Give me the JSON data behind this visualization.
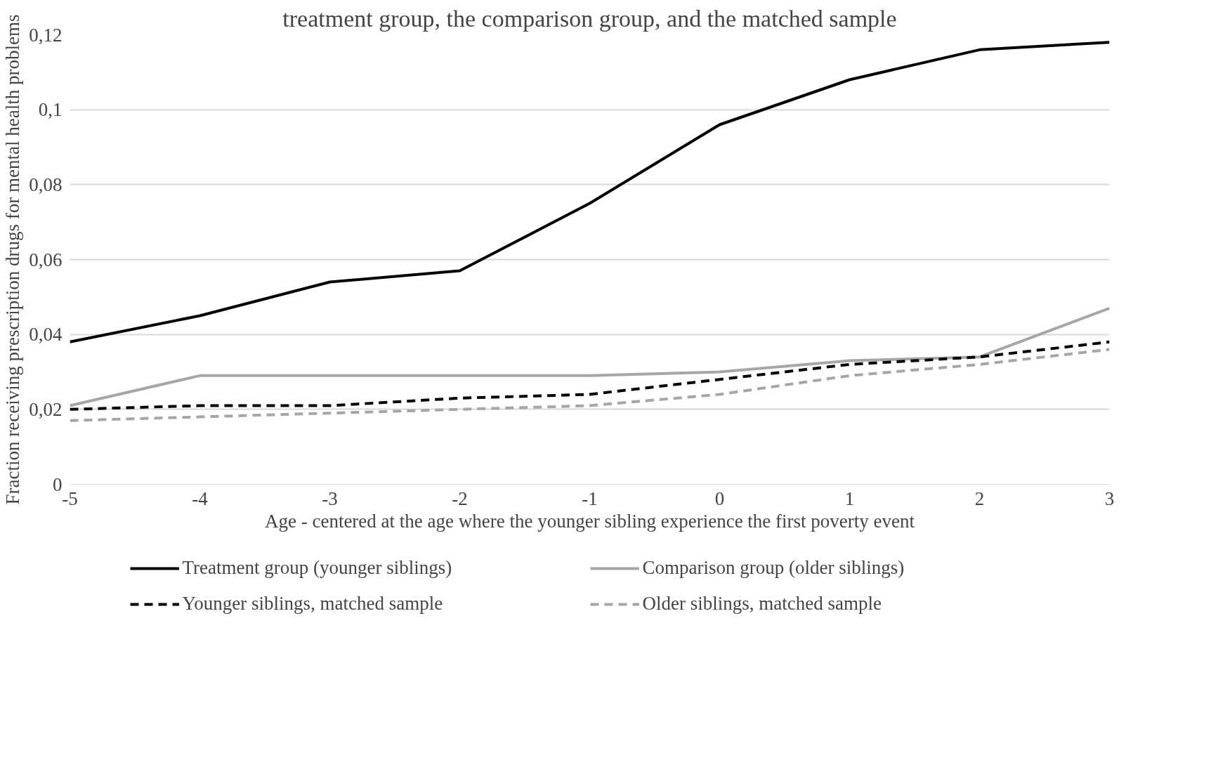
{
  "chart_data": {
    "type": "line",
    "title": "treatment group, the comparison group, and the matched sample",
    "xlabel": "Age - centered at the age where the younger sibling experience the first poverty event",
    "ylabel": "Fraction receiving prescription drugs for mental health problems",
    "x": [
      -5,
      -4,
      -3,
      -2,
      -1,
      0,
      1,
      2,
      3
    ],
    "xlim": [
      -5,
      3
    ],
    "xticks": [
      -5,
      -4,
      -3,
      -2,
      -1,
      0,
      1,
      2,
      3
    ],
    "ylim": [
      0,
      0.12
    ],
    "yticks": [
      {
        "value": 0,
        "label": "0"
      },
      {
        "value": 0.02,
        "label": "0,02"
      },
      {
        "value": 0.04,
        "label": "0,04"
      },
      {
        "value": 0.06,
        "label": "0,06"
      },
      {
        "value": 0.08,
        "label": "0,08"
      },
      {
        "value": 0.1,
        "label": "0,1"
      },
      {
        "value": 0.12,
        "label": "0,12"
      }
    ],
    "grid": "y",
    "legend": "bottom",
    "marker": "none",
    "series": [
      {
        "name": "Treatment group (younger siblings)",
        "color": "#000000",
        "line_style": "solid",
        "values": [
          0.038,
          0.045,
          0.054,
          0.057,
          0.075,
          0.096,
          0.108,
          0.116,
          0.118
        ]
      },
      {
        "name": "Comparison group (older siblings)",
        "color": "#a6a6a6",
        "line_style": "solid",
        "values": [
          0.021,
          0.029,
          0.029,
          0.029,
          0.029,
          0.03,
          0.033,
          0.034,
          0.047
        ]
      },
      {
        "name": "Younger siblings, matched sample",
        "color": "#000000",
        "line_style": "dashed",
        "values": [
          0.02,
          0.021,
          0.021,
          0.023,
          0.024,
          0.028,
          0.032,
          0.034,
          0.038
        ]
      },
      {
        "name": "Older siblings, matched sample",
        "color": "#a6a6a6",
        "line_style": "dashed",
        "values": [
          0.017,
          0.018,
          0.019,
          0.02,
          0.021,
          0.024,
          0.029,
          0.032,
          0.036
        ]
      }
    ]
  }
}
